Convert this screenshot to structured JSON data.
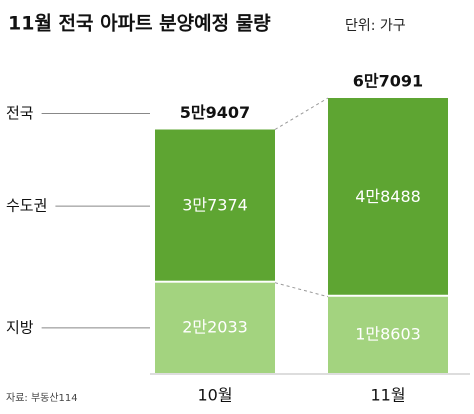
{
  "chart_data": {
    "type": "stacked-bar",
    "title": "11월 전국 아파트 분양예정 물량",
    "subtitle": "단위: 가구",
    "source": "자료: 부동산114",
    "categories": [
      "10월",
      "11월"
    ],
    "series": [
      {
        "name": "지방",
        "color": "#a3d37f",
        "values": [
          22033,
          18603
        ],
        "value_labels": [
          "2만2033",
          "1만8603"
        ]
      },
      {
        "name": "수도권",
        "color": "#5ea532",
        "values": [
          37374,
          48488
        ],
        "value_labels": [
          "3만7374",
          "4만8488"
        ]
      }
    ],
    "total_name": "전국",
    "totals": [
      59407,
      67091
    ],
    "total_labels": [
      "5만9407",
      "6만7091"
    ]
  }
}
